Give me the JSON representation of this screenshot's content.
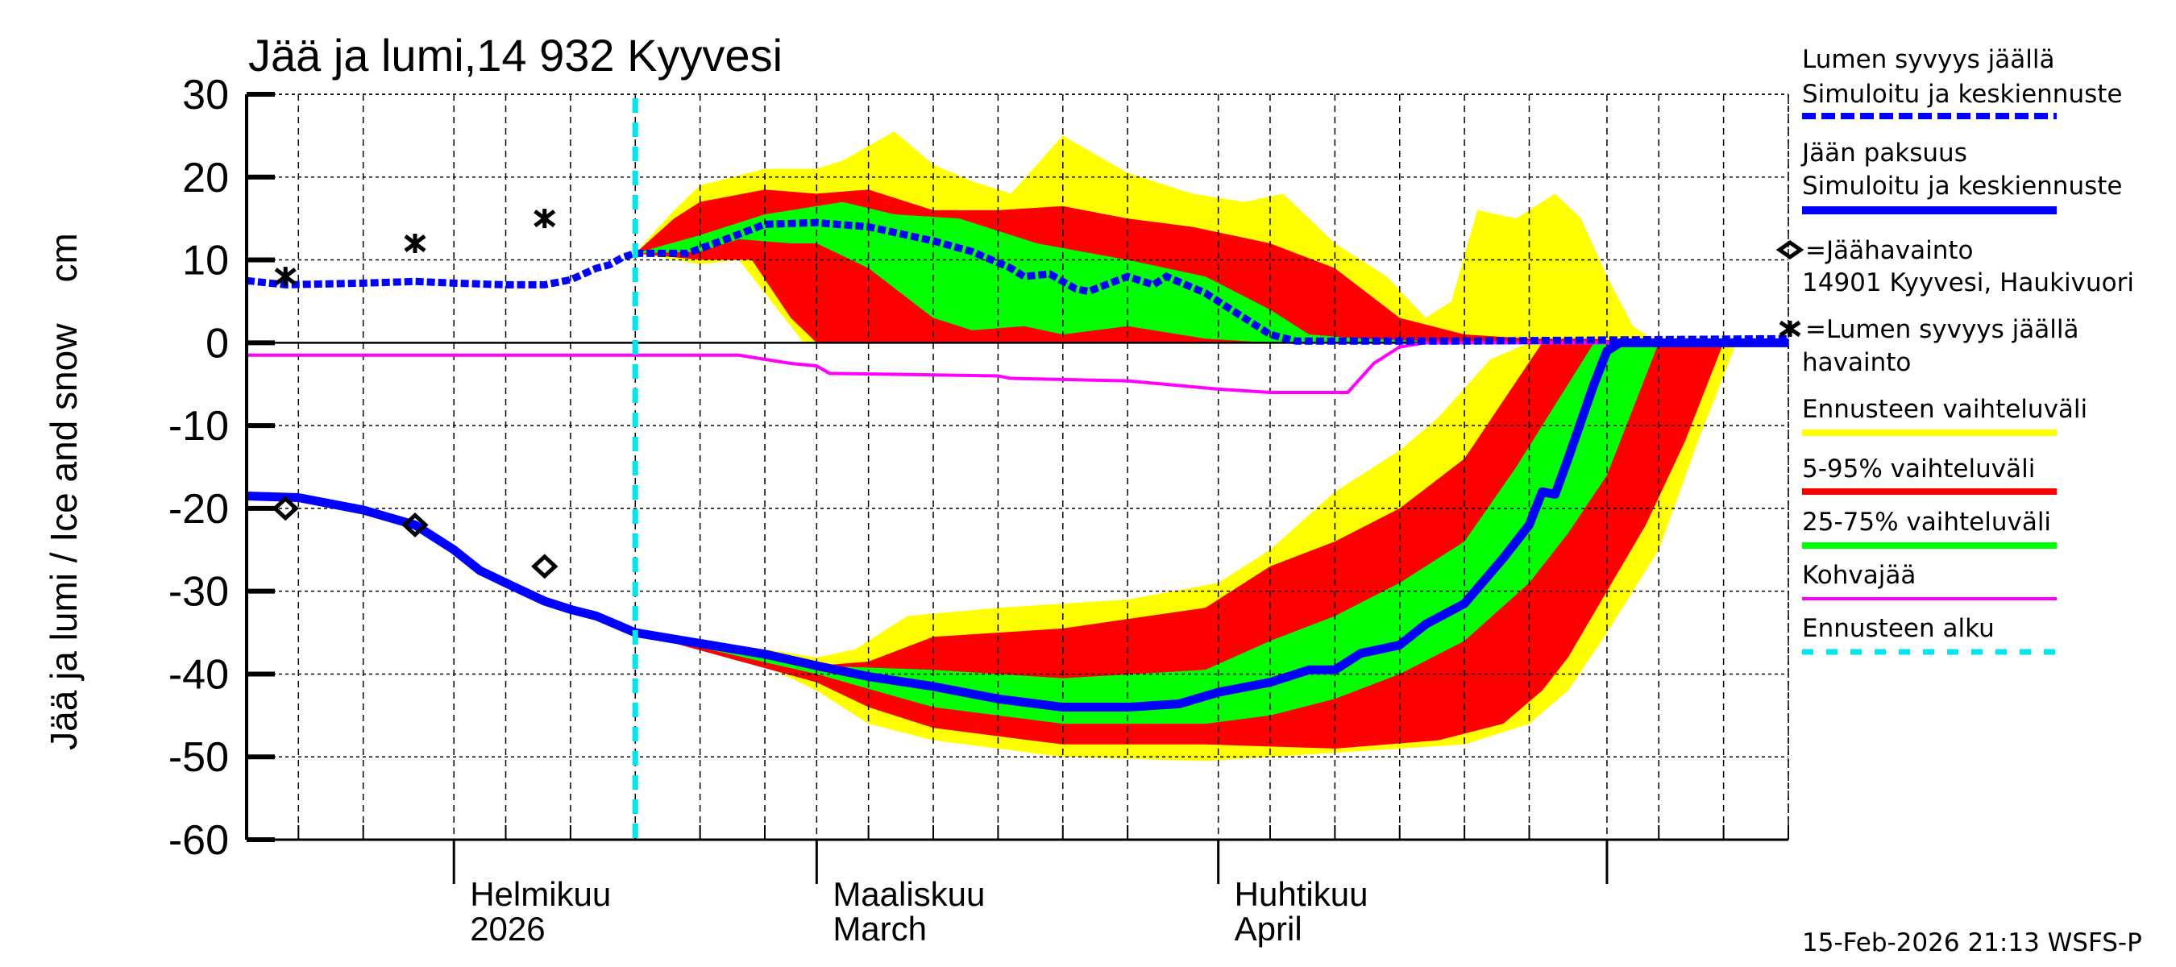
{
  "chart_data": {
    "type": "area",
    "title": "Jää ja lumi,14 932 Kyyvesi",
    "ylabel": "Jää ja lumi / Ice and snow    cm",
    "ylim": [
      -60,
      30
    ],
    "yticks": [
      "30",
      "20",
      "10",
      "0",
      "-10",
      "-20",
      "-30",
      "-40",
      "-50",
      "-60"
    ],
    "xlim": [
      "2026-01-16",
      "2026-05-15"
    ],
    "xtick_labels": [
      {
        "date": "2026-02-01",
        "line1": "Helmikuu",
        "line2": "2026"
      },
      {
        "date": "2026-03-01",
        "line1": "Maaliskuu",
        "line2": "March"
      },
      {
        "date": "2026-04-01",
        "line1": "Huhtikuu",
        "line2": "April"
      }
    ],
    "grid": true,
    "forecast_start": "2026-02-15",
    "colors": {
      "snow": "#0000ff",
      "ice": "#0000ff",
      "yellow": "#ffff00",
      "red": "#ff0000",
      "green": "#00ff00",
      "kohva": "#ff00ff",
      "forecast": "#00e5ee"
    },
    "series": {
      "snow_depth": [
        [
          "2026-01-16",
          7.5
        ],
        [
          "2026-01-19",
          7
        ],
        [
          "2026-01-25",
          7.2
        ],
        [
          "2026-01-29",
          7.4
        ],
        [
          "2026-02-01",
          7.2
        ],
        [
          "2026-02-05",
          7
        ],
        [
          "2026-02-08",
          7
        ],
        [
          "2026-02-10",
          7.6
        ],
        [
          "2026-02-12",
          9
        ],
        [
          "2026-02-13",
          9.4
        ],
        [
          "2026-02-14",
          10.3
        ],
        [
          "2026-02-15",
          10.8
        ],
        [
          "2026-02-19",
          10.8
        ],
        [
          "2026-02-22",
          12.5
        ],
        [
          "2026-02-25",
          14.3
        ],
        [
          "2026-03-01",
          14.5
        ],
        [
          "2026-03-05",
          14
        ],
        [
          "2026-03-10",
          12.3
        ],
        [
          "2026-03-13",
          11
        ],
        [
          "2026-03-16",
          9
        ],
        [
          "2026-03-17",
          8
        ],
        [
          "2026-03-19",
          8.3
        ],
        [
          "2026-03-21",
          6.5
        ],
        [
          "2026-03-22",
          6.2
        ],
        [
          "2026-03-25",
          8
        ],
        [
          "2026-03-27",
          7
        ],
        [
          "2026-03-28",
          8
        ],
        [
          "2026-03-31",
          6
        ],
        [
          "2026-04-03",
          3
        ],
        [
          "2026-04-05",
          1
        ],
        [
          "2026-04-07",
          0.2
        ],
        [
          "2026-04-20",
          0.2
        ],
        [
          "2026-05-15",
          0.5
        ]
      ],
      "ice_thickness": [
        [
          "2026-01-16",
          -18.5
        ],
        [
          "2026-01-20",
          -18.7
        ],
        [
          "2026-01-25",
          -20.2
        ],
        [
          "2026-01-29",
          -22
        ],
        [
          "2026-02-01",
          -25
        ],
        [
          "2026-02-03",
          -27.5
        ],
        [
          "2026-02-05",
          -29
        ],
        [
          "2026-02-08",
          -31.2
        ],
        [
          "2026-02-10",
          -32.2
        ],
        [
          "2026-02-12",
          -33
        ],
        [
          "2026-02-15",
          -35
        ],
        [
          "2026-02-20",
          -36.3
        ],
        [
          "2026-02-25",
          -37.6
        ],
        [
          "2026-03-01",
          -39
        ],
        [
          "2026-03-05",
          -40.3
        ],
        [
          "2026-03-10",
          -41.5
        ],
        [
          "2026-03-15",
          -43
        ],
        [
          "2026-03-20",
          -44
        ],
        [
          "2026-03-25",
          -44
        ],
        [
          "2026-03-29",
          -43.6
        ],
        [
          "2026-04-01",
          -42.2
        ],
        [
          "2026-04-05",
          -41
        ],
        [
          "2026-04-08",
          -39.5
        ],
        [
          "2026-04-10",
          -39.5
        ],
        [
          "2026-04-12",
          -37.5
        ],
        [
          "2026-04-15",
          -36.5
        ],
        [
          "2026-04-17",
          -34
        ],
        [
          "2026-04-20",
          -31.5
        ],
        [
          "2026-04-23",
          -26
        ],
        [
          "2026-04-25",
          -22
        ],
        [
          "2026-04-26",
          -18
        ],
        [
          "2026-04-27",
          -18.3
        ],
        [
          "2026-04-28",
          -14
        ],
        [
          "2026-04-30",
          -5
        ],
        [
          "2026-05-01",
          -1
        ],
        [
          "2026-05-02",
          0
        ],
        [
          "2026-05-15",
          0
        ]
      ],
      "kohvajaa": [
        [
          "2026-01-16",
          -1.5
        ],
        [
          "2026-02-23",
          -1.5
        ],
        [
          "2026-02-27",
          -2.5
        ],
        [
          "2026-03-01",
          -2.8
        ],
        [
          "2026-03-02",
          -3.7
        ],
        [
          "2026-03-15",
          -4
        ],
        [
          "2026-03-16",
          -4.3
        ],
        [
          "2026-03-25",
          -4.6
        ],
        [
          "2026-04-01",
          -5.6
        ],
        [
          "2026-04-05",
          -6
        ],
        [
          "2026-04-11",
          -6
        ],
        [
          "2026-04-13",
          -2.5
        ],
        [
          "2026-04-15",
          -0.5
        ],
        [
          "2026-04-17",
          0
        ],
        [
          "2026-05-15",
          0
        ]
      ]
    },
    "bands": {
      "snow_yellow": {
        "upper": [
          [
            "2026-02-15",
            10.8
          ],
          [
            "2026-02-18",
            16
          ],
          [
            "2026-02-20",
            19
          ],
          [
            "2026-02-25",
            21
          ],
          [
            "2026-03-01",
            21
          ],
          [
            "2026-03-03",
            22
          ],
          [
            "2026-03-07",
            25.5
          ],
          [
            "2026-03-10",
            21.5
          ],
          [
            "2026-03-13",
            19.5
          ],
          [
            "2026-03-16",
            18
          ],
          [
            "2026-03-20",
            25
          ],
          [
            "2026-03-25",
            20.5
          ],
          [
            "2026-03-30",
            18
          ],
          [
            "2026-04-03",
            17
          ],
          [
            "2026-04-06",
            18
          ],
          [
            "2026-04-10",
            12
          ],
          [
            "2026-04-14",
            8
          ],
          [
            "2026-04-17",
            3
          ],
          [
            "2026-04-19",
            5
          ],
          [
            "2026-04-21",
            16
          ],
          [
            "2026-04-24",
            15
          ],
          [
            "2026-04-27",
            18
          ],
          [
            "2026-04-29",
            15
          ],
          [
            "2026-05-01",
            8
          ],
          [
            "2026-05-03",
            2
          ],
          [
            "2026-05-05",
            0
          ]
        ],
        "lower": [
          [
            "2026-02-15",
            10.8
          ],
          [
            "2026-02-20",
            9.5
          ],
          [
            "2026-02-23",
            10
          ],
          [
            "2026-02-26",
            4
          ],
          [
            "2026-02-28",
            0
          ],
          [
            "2026-05-05",
            0
          ]
        ]
      },
      "snow_red": {
        "upper": [
          [
            "2026-02-15",
            10.8
          ],
          [
            "2026-02-18",
            15
          ],
          [
            "2026-02-20",
            17
          ],
          [
            "2026-02-25",
            18.5
          ],
          [
            "2026-03-01",
            18
          ],
          [
            "2026-03-05",
            18.5
          ],
          [
            "2026-03-10",
            16
          ],
          [
            "2026-03-15",
            16
          ],
          [
            "2026-03-20",
            16.5
          ],
          [
            "2026-03-25",
            15
          ],
          [
            "2026-03-30",
            14
          ],
          [
            "2026-04-05",
            12
          ],
          [
            "2026-04-10",
            9
          ],
          [
            "2026-04-15",
            3
          ],
          [
            "2026-04-20",
            1
          ],
          [
            "2026-04-25",
            0.5
          ],
          [
            "2026-04-30",
            0.5
          ],
          [
            "2026-05-03",
            0
          ]
        ],
        "lower": [
          [
            "2026-02-15",
            10.8
          ],
          [
            "2026-02-20",
            10
          ],
          [
            "2026-02-24",
            10
          ],
          [
            "2026-02-27",
            3
          ],
          [
            "2026-03-01",
            0
          ],
          [
            "2026-05-03",
            0
          ]
        ]
      },
      "snow_green": {
        "upper": [
          [
            "2026-02-15",
            10.8
          ],
          [
            "2026-02-20",
            13
          ],
          [
            "2026-02-25",
            15.5
          ],
          [
            "2026-03-01",
            16.5
          ],
          [
            "2026-03-03",
            17
          ],
          [
            "2026-03-07",
            15.5
          ],
          [
            "2026-03-12",
            15
          ],
          [
            "2026-03-18",
            12
          ],
          [
            "2026-03-25",
            10
          ],
          [
            "2026-03-31",
            8
          ],
          [
            "2026-04-05",
            4
          ],
          [
            "2026-04-08",
            1
          ],
          [
            "2026-04-12",
            0.5
          ],
          [
            "2026-04-20",
            0
          ]
        ],
        "lower": [
          [
            "2026-02-15",
            10.8
          ],
          [
            "2026-02-20",
            11
          ],
          [
            "2026-02-23",
            12.5
          ],
          [
            "2026-02-27",
            12
          ],
          [
            "2026-03-01",
            12
          ],
          [
            "2026-03-05",
            9
          ],
          [
            "2026-03-10",
            3
          ],
          [
            "2026-03-13",
            1.5
          ],
          [
            "2026-03-17",
            2
          ],
          [
            "2026-03-20",
            1
          ],
          [
            "2026-03-25",
            2
          ],
          [
            "2026-03-31",
            0.5
          ],
          [
            "2026-04-05",
            0
          ],
          [
            "2026-04-20",
            0
          ]
        ]
      },
      "ice_yellow": {
        "upper": [
          [
            "2026-02-15",
            -35
          ],
          [
            "2026-02-25",
            -37
          ],
          [
            "2026-03-01",
            -38
          ],
          [
            "2026-03-04",
            -37
          ],
          [
            "2026-03-08",
            -33
          ],
          [
            "2026-03-15",
            -32
          ],
          [
            "2026-03-25",
            -31
          ],
          [
            "2026-04-01",
            -29
          ],
          [
            "2026-04-05",
            -25
          ],
          [
            "2026-04-10",
            -18
          ],
          [
            "2026-04-15",
            -13
          ],
          [
            "2026-04-18",
            -9
          ],
          [
            "2026-04-22",
            -2
          ],
          [
            "2026-04-25",
            0
          ]
        ],
        "lower": [
          [
            "2026-02-15",
            -35
          ],
          [
            "2026-02-25",
            -39
          ],
          [
            "2026-03-01",
            -42
          ],
          [
            "2026-03-05",
            -46
          ],
          [
            "2026-03-10",
            -48
          ],
          [
            "2026-03-20",
            -50
          ],
          [
            "2026-03-31",
            -50.5
          ],
          [
            "2026-04-10",
            -49.5
          ],
          [
            "2026-04-20",
            -48.5
          ],
          [
            "2026-04-25",
            -46
          ],
          [
            "2026-04-28",
            -42
          ],
          [
            "2026-05-01",
            -35
          ],
          [
            "2026-05-05",
            -25
          ],
          [
            "2026-05-08",
            -12
          ],
          [
            "2026-05-11",
            0
          ]
        ]
      },
      "ice_red": {
        "upper": [
          [
            "2026-02-15",
            -35
          ],
          [
            "2026-03-01",
            -39
          ],
          [
            "2026-03-05",
            -38.5
          ],
          [
            "2026-03-10",
            -35.5
          ],
          [
            "2026-03-20",
            -34.5
          ],
          [
            "2026-03-31",
            -32
          ],
          [
            "2026-04-05",
            -27
          ],
          [
            "2026-04-10",
            -24
          ],
          [
            "2026-04-15",
            -20
          ],
          [
            "2026-04-20",
            -14
          ],
          [
            "2026-04-23",
            -7
          ],
          [
            "2026-04-26",
            0
          ]
        ],
        "lower": [
          [
            "2026-02-15",
            -35
          ],
          [
            "2026-03-01",
            -41
          ],
          [
            "2026-03-05",
            -44
          ],
          [
            "2026-03-10",
            -46.5
          ],
          [
            "2026-03-20",
            -48.5
          ],
          [
            "2026-03-31",
            -48.5
          ],
          [
            "2026-04-10",
            -49
          ],
          [
            "2026-04-18",
            -48
          ],
          [
            "2026-04-23",
            -46
          ],
          [
            "2026-04-26",
            -42
          ],
          [
            "2026-04-28",
            -38
          ],
          [
            "2026-05-01",
            -30
          ],
          [
            "2026-05-04",
            -22
          ],
          [
            "2026-05-07",
            -12
          ],
          [
            "2026-05-10",
            0
          ]
        ]
      },
      "ice_green": {
        "upper": [
          [
            "2026-02-15",
            -35
          ],
          [
            "2026-03-01",
            -39
          ],
          [
            "2026-03-10",
            -39.5
          ],
          [
            "2026-03-20",
            -40.5
          ],
          [
            "2026-03-31",
            -39.5
          ],
          [
            "2026-04-05",
            -36
          ],
          [
            "2026-04-10",
            -33
          ],
          [
            "2026-04-15",
            -29
          ],
          [
            "2026-04-20",
            -24
          ],
          [
            "2026-04-24",
            -15
          ],
          [
            "2026-04-28",
            -5
          ],
          [
            "2026-04-30",
            0
          ]
        ],
        "lower": [
          [
            "2026-02-15",
            -35
          ],
          [
            "2026-03-01",
            -40
          ],
          [
            "2026-03-10",
            -44
          ],
          [
            "2026-03-20",
            -46
          ],
          [
            "2026-03-31",
            -46
          ],
          [
            "2026-04-05",
            -45
          ],
          [
            "2026-04-10",
            -43
          ],
          [
            "2026-04-15",
            -40
          ],
          [
            "2026-04-20",
            -36
          ],
          [
            "2026-04-25",
            -29
          ],
          [
            "2026-04-28",
            -23
          ],
          [
            "2026-05-01",
            -16
          ],
          [
            "2026-05-03",
            -8
          ],
          [
            "2026-05-05",
            0
          ]
        ]
      }
    },
    "observations": {
      "ice": [
        [
          "2026-01-19",
          -20
        ],
        [
          "2026-01-29",
          -22
        ],
        [
          "2026-02-08",
          -27
        ]
      ],
      "snow": [
        [
          "2026-01-19",
          8
        ],
        [
          "2026-01-29",
          12
        ],
        [
          "2026-02-08",
          15
        ]
      ]
    },
    "legend": {
      "snow_l1": "Lumen syvyys jäällä",
      "snow_l2": "Simuloitu ja keskiennuste",
      "ice_l1": "Jään paksuus",
      "ice_l2": "Simuloitu ja keskiennuste",
      "obs_ice_l1": "=Jäähavainto",
      "obs_ice_l2": "14901 Kyyvesi, Haukivuori",
      "obs_snow_l1": "=Lumen syvyys jäällä",
      "obs_snow_l2": "havainto",
      "yellow": "Ennusteen vaihteluväli",
      "red": "5-95% vaihteluväli",
      "green": "25-75% vaihteluväli",
      "kohva": "Kohvajää",
      "forecast": "Ennusteen alku"
    },
    "timestamp": "15-Feb-2026 21:13 WSFS-P"
  }
}
